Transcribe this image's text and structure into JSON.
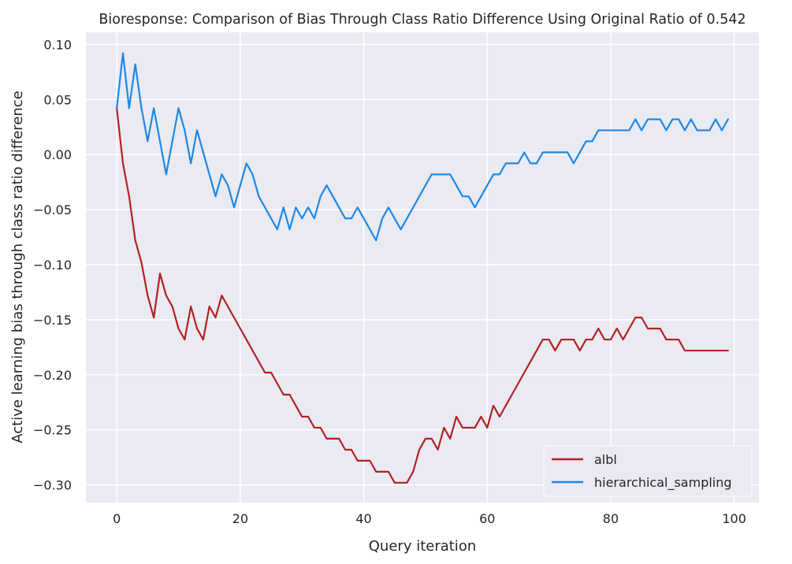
{
  "chart_data": {
    "type": "line",
    "title": "Bioresponse: Comparison of Bias Through Class Ratio Difference Using Original Ratio of 0.542",
    "xlabel": "Query iteration",
    "ylabel": "Active learning bias through class ratio difference",
    "xlim": [
      -5,
      104
    ],
    "ylim": [
      -0.316,
      0.111
    ],
    "xticks": [
      0,
      20,
      40,
      60,
      80,
      100
    ],
    "xtick_labels": [
      "0",
      "20",
      "40",
      "60",
      "80",
      "100"
    ],
    "yticks": [
      -0.3,
      -0.25,
      -0.2,
      -0.15,
      -0.1,
      -0.05,
      0.0,
      0.05,
      0.1
    ],
    "ytick_labels": [
      "−0.30",
      "−0.25",
      "−0.20",
      "−0.15",
      "−0.10",
      "−0.05",
      "0.00",
      "0.05",
      "0.10"
    ],
    "grid": true,
    "legend_position": "lower-right",
    "background_color": "#eaeaf2",
    "grid_color": "#ffffff",
    "series": [
      {
        "name": "albl",
        "color": "#b22222",
        "x": [
          0,
          1,
          2,
          3,
          4,
          5,
          6,
          7,
          8,
          9,
          10,
          11,
          12,
          13,
          14,
          15,
          16,
          17,
          18,
          19,
          20,
          21,
          22,
          23,
          24,
          25,
          26,
          27,
          28,
          29,
          30,
          31,
          32,
          33,
          34,
          35,
          36,
          37,
          38,
          39,
          40,
          41,
          42,
          43,
          44,
          45,
          46,
          47,
          48,
          49,
          50,
          51,
          52,
          53,
          54,
          55,
          56,
          57,
          58,
          59,
          60,
          61,
          62,
          63,
          64,
          65,
          66,
          67,
          68,
          69,
          70,
          71,
          72,
          73,
          74,
          75,
          76,
          77,
          78,
          79,
          80,
          81,
          82,
          83,
          84,
          85,
          86,
          87,
          88,
          89,
          90,
          91,
          92,
          93,
          94,
          95,
          96,
          97,
          98,
          99
        ],
        "values": [
          0.042,
          -0.008,
          -0.038,
          -0.078,
          -0.098,
          -0.128,
          -0.148,
          -0.108,
          -0.128,
          -0.138,
          -0.158,
          -0.168,
          -0.138,
          -0.158,
          -0.168,
          -0.138,
          -0.148,
          -0.128,
          -0.138,
          -0.148,
          -0.158,
          -0.168,
          -0.178,
          -0.188,
          -0.198,
          -0.198,
          -0.208,
          -0.218,
          -0.218,
          -0.228,
          -0.238,
          -0.238,
          -0.248,
          -0.248,
          -0.258,
          -0.258,
          -0.258,
          -0.268,
          -0.268,
          -0.278,
          -0.278,
          -0.278,
          -0.288,
          -0.288,
          -0.288,
          -0.298,
          -0.298,
          -0.298,
          -0.288,
          -0.268,
          -0.258,
          -0.258,
          -0.268,
          -0.248,
          -0.258,
          -0.238,
          -0.248,
          -0.248,
          -0.248,
          -0.238,
          -0.248,
          -0.228,
          -0.238,
          -0.228,
          -0.218,
          -0.208,
          -0.198,
          -0.188,
          -0.178,
          -0.168,
          -0.168,
          -0.178,
          -0.168,
          -0.168,
          -0.168,
          -0.178,
          -0.168,
          -0.168,
          -0.158,
          -0.168,
          -0.168,
          -0.158,
          -0.168,
          -0.158,
          -0.148,
          -0.148,
          -0.158,
          -0.158,
          -0.158,
          -0.168,
          -0.168,
          -0.168,
          -0.178,
          -0.178,
          -0.178,
          -0.178,
          -0.178,
          -0.178,
          -0.178,
          -0.178
        ]
      },
      {
        "name": "hierarchical_sampling",
        "color": "#1e88e5",
        "x": [
          0,
          1,
          2,
          3,
          4,
          5,
          6,
          7,
          8,
          9,
          10,
          11,
          12,
          13,
          14,
          15,
          16,
          17,
          18,
          19,
          20,
          21,
          22,
          23,
          24,
          25,
          26,
          27,
          28,
          29,
          30,
          31,
          32,
          33,
          34,
          35,
          36,
          37,
          38,
          39,
          40,
          41,
          42,
          43,
          44,
          45,
          46,
          47,
          48,
          49,
          50,
          51,
          52,
          53,
          54,
          55,
          56,
          57,
          58,
          59,
          60,
          61,
          62,
          63,
          64,
          65,
          66,
          67,
          68,
          69,
          70,
          71,
          72,
          73,
          74,
          75,
          76,
          77,
          78,
          79,
          80,
          81,
          82,
          83,
          84,
          85,
          86,
          87,
          88,
          89,
          90,
          91,
          92,
          93,
          94,
          95,
          96,
          97,
          98,
          99
        ],
        "values": [
          0.042,
          0.092,
          0.042,
          0.082,
          0.042,
          0.012,
          0.042,
          0.012,
          -0.018,
          0.012,
          0.042,
          0.022,
          -0.008,
          0.022,
          0.002,
          -0.018,
          -0.038,
          -0.018,
          -0.028,
          -0.048,
          -0.028,
          -0.008,
          -0.018,
          -0.038,
          -0.048,
          -0.058,
          -0.068,
          -0.048,
          -0.068,
          -0.048,
          -0.058,
          -0.048,
          -0.058,
          -0.038,
          -0.028,
          -0.038,
          -0.048,
          -0.058,
          -0.058,
          -0.048,
          -0.058,
          -0.068,
          -0.078,
          -0.058,
          -0.048,
          -0.058,
          -0.068,
          -0.058,
          -0.048,
          -0.038,
          -0.028,
          -0.018,
          -0.018,
          -0.018,
          -0.018,
          -0.028,
          -0.038,
          -0.038,
          -0.048,
          -0.038,
          -0.028,
          -0.018,
          -0.018,
          -0.008,
          -0.008,
          -0.008,
          0.002,
          -0.008,
          -0.008,
          0.002,
          0.002,
          0.002,
          0.002,
          0.002,
          -0.008,
          0.002,
          0.012,
          0.012,
          0.022,
          0.022,
          0.022,
          0.022,
          0.022,
          0.022,
          0.032,
          0.022,
          0.032,
          0.032,
          0.032,
          0.022,
          0.032,
          0.032,
          0.022,
          0.032,
          0.022,
          0.022,
          0.022,
          0.032,
          0.022,
          0.032
        ]
      }
    ]
  }
}
